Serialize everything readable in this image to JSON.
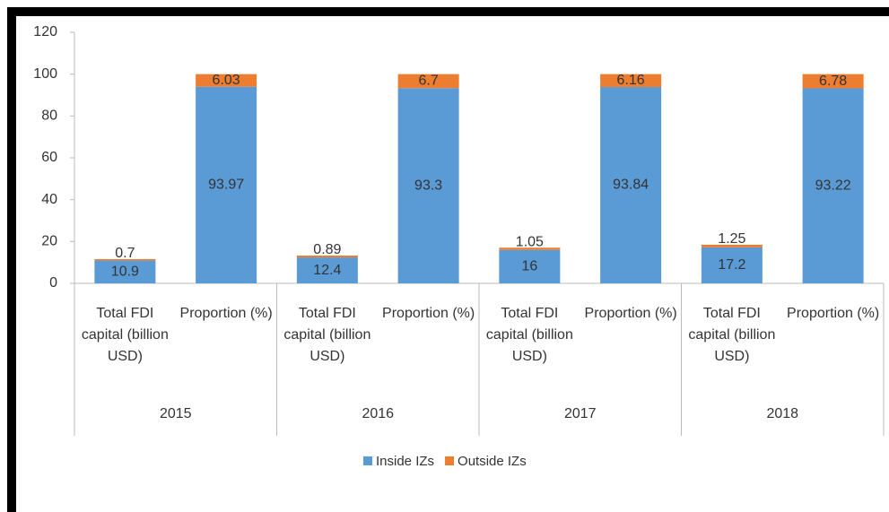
{
  "chart_data": {
    "type": "stacked_bar",
    "categories": [
      "Total FDI capital (billion USD)",
      "Proportion (%)",
      "Total FDI capital (billion USD)",
      "Proportion (%)",
      "Total FDI capital (billion USD)",
      "Proportion (%)",
      "Total FDI capital (billion USD)",
      "Proportion (%)"
    ],
    "groups": [
      "2015",
      "2016",
      "2017",
      "2018"
    ],
    "series": [
      {
        "name": "Inside IZs",
        "color": "#5b9bd5",
        "values": [
          10.9,
          93.97,
          12.4,
          93.3,
          16,
          93.84,
          17.2,
          93.22
        ]
      },
      {
        "name": "Outside IZs",
        "color": "#ed7d31",
        "values": [
          0.7,
          6.03,
          0.89,
          6.7,
          1.05,
          6.16,
          1.25,
          6.78
        ]
      }
    ],
    "ylim": [
      0,
      120
    ],
    "yticks": [
      0,
      20,
      40,
      60,
      80,
      100,
      120
    ],
    "grid": false,
    "legend": "bottom"
  }
}
